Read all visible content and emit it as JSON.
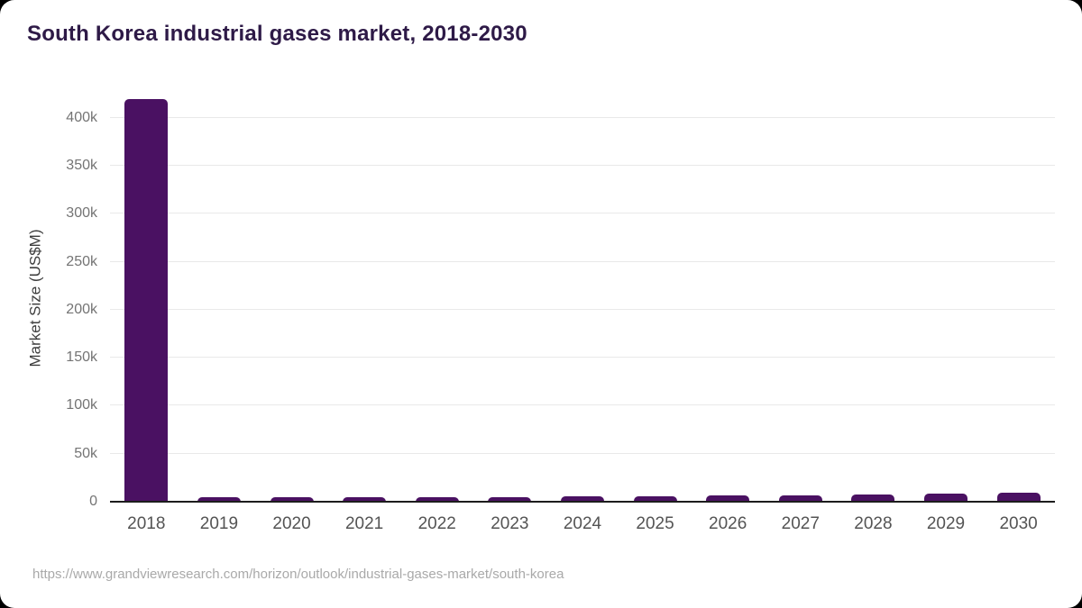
{
  "title": "South Korea industrial gases market, 2018-2030",
  "source_url": "https://www.grandviewresearch.com/horizon/outlook/industrial-gases-market/south-korea",
  "colors": {
    "bar": "#4a1162",
    "title": "#2e1a47",
    "gridline": "#e9e9e9",
    "axis_line": "#1c1c1c",
    "tick_label": "#747474",
    "x_label": "#545454",
    "page_background": "#000000",
    "card_background": "#ffffff"
  },
  "chart_data": {
    "type": "bar",
    "title": "South Korea industrial gases market, 2018-2030",
    "xlabel": "",
    "ylabel": "Market Size (US$M)",
    "categories": [
      "2018",
      "2019",
      "2020",
      "2021",
      "2022",
      "2023",
      "2024",
      "2025",
      "2026",
      "2027",
      "2028",
      "2029",
      "2030"
    ],
    "values": [
      419000,
      4300,
      4400,
      4500,
      4700,
      4800,
      5400,
      5700,
      6300,
      6500,
      7300,
      8200,
      9100
    ],
    "ylim": [
      0,
      425000
    ],
    "yticks": [
      {
        "value": 0,
        "label": "0"
      },
      {
        "value": 50000,
        "label": "50k"
      },
      {
        "value": 100000,
        "label": "100k"
      },
      {
        "value": 150000,
        "label": "150k"
      },
      {
        "value": 200000,
        "label": "200k"
      },
      {
        "value": 250000,
        "label": "250k"
      },
      {
        "value": 300000,
        "label": "300k"
      },
      {
        "value": 350000,
        "label": "350k"
      },
      {
        "value": 400000,
        "label": "400k"
      }
    ],
    "grid": "horizontal",
    "legend": "none",
    "bar_color": "#4a1162"
  }
}
